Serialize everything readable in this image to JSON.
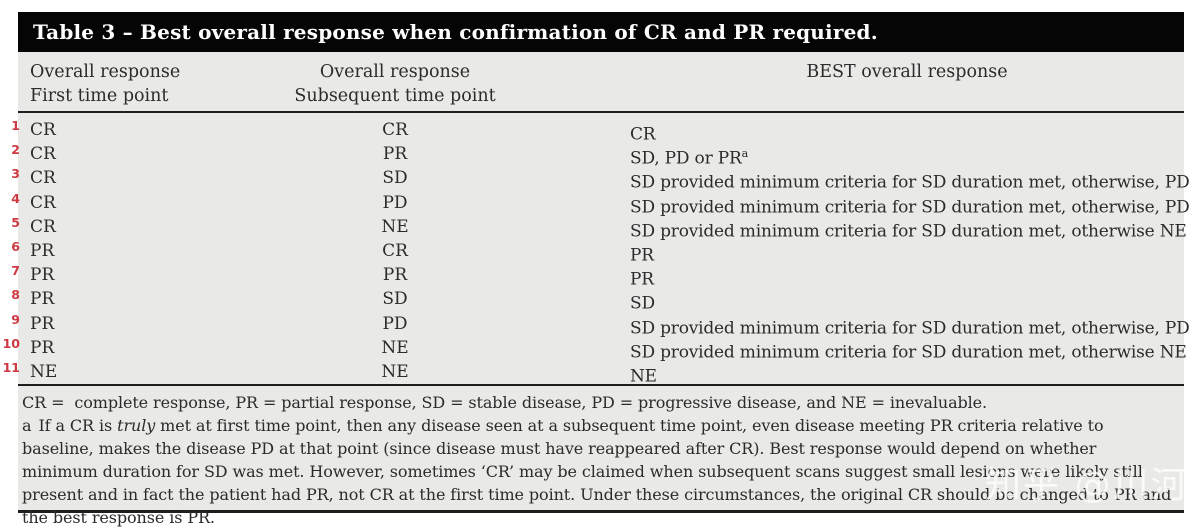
{
  "colors": {
    "title_bar_bg": "#050505",
    "title_text": "#ffffff",
    "table_bg": "#e9e9e7",
    "body_text": "#2b2b2b",
    "row_number_red": "#cd3a43",
    "rule": "#1e1e1e",
    "watermark": "#ffffff"
  },
  "table": {
    "title": "Table 3 – Best overall response when confirmation of CR and PR required.",
    "columns": [
      {
        "line1": "Overall response",
        "line2": "First time point"
      },
      {
        "line1": "Overall response",
        "line2": "Subsequent time point"
      },
      {
        "line1": "BEST overall response",
        "line2": ""
      }
    ],
    "rows": [
      {
        "num": "1",
        "first": "CR",
        "subsequent": "CR",
        "best": "CR"
      },
      {
        "num": "2",
        "first": "CR",
        "subsequent": "PR",
        "best": "SD, PD or PR",
        "best_sup": "a"
      },
      {
        "num": "3",
        "first": "CR",
        "subsequent": "SD",
        "best": "SD provided minimum criteria for SD duration met, otherwise, PD"
      },
      {
        "num": "4",
        "first": "CR",
        "subsequent": "PD",
        "best": "SD provided minimum criteria for SD duration met, otherwise, PD"
      },
      {
        "num": "5",
        "first": "CR",
        "subsequent": "NE",
        "best": "SD provided minimum criteria for SD duration met, otherwise NE"
      },
      {
        "num": "6",
        "first": "PR",
        "subsequent": "CR",
        "best": "PR"
      },
      {
        "num": "7",
        "first": "PR",
        "subsequent": "PR",
        "best": "PR"
      },
      {
        "num": "8",
        "first": "PR",
        "subsequent": "SD",
        "best": "SD"
      },
      {
        "num": "9",
        "first": "PR",
        "subsequent": "PD",
        "best": "SD provided minimum criteria for SD duration met, otherwise, PD"
      },
      {
        "num": "10",
        "first": "PR",
        "subsequent": "NE",
        "best": "SD provided minimum criteria for SD duration met, otherwise NE"
      },
      {
        "num": "11",
        "first": "NE",
        "subsequent": "NE",
        "best": "NE"
      }
    ],
    "footnotes": {
      "abbrev": "CR =  complete response, PR = partial response, SD = stable disease, PD = progressive disease, and NE = inevaluable.",
      "a_marker": "a",
      "a_pre": "If a CR is ",
      "a_italic": "truly",
      "a_post": " met at first time point, then any disease seen at a subsequent time point, even disease meeting PR criteria relative to baseline, makes the disease PD at that point (since disease must have reappeared after CR). Best response would depend on whether minimum duration for SD was met. However, sometimes ‘CR’ may be claimed when subsequent scans suggest small lesions were likely still present and in fact the patient had PR, not CR at the first time point. Under these circumstances, the original CR should be changed to PR and the best response is PR."
    }
  },
  "watermark": {
    "text": "知乎 @川河"
  }
}
